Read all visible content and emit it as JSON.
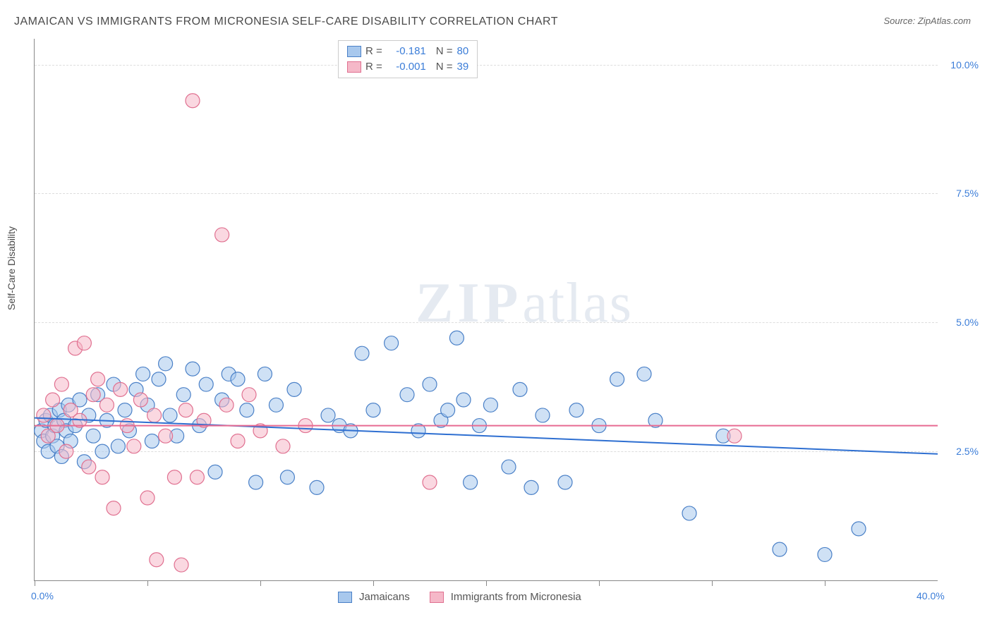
{
  "title": "JAMAICAN VS IMMIGRANTS FROM MICRONESIA SELF-CARE DISABILITY CORRELATION CHART",
  "source_label": "Source: ",
  "source_value": "ZipAtlas.com",
  "y_axis_label": "Self-Care Disability",
  "watermark_bold": "ZIP",
  "watermark_light": "atlas",
  "chart": {
    "type": "scatter",
    "xlim": [
      0,
      40
    ],
    "ylim": [
      0,
      10.5
    ],
    "x_tick_positions": [
      0,
      5,
      10,
      15,
      20,
      25,
      30,
      35
    ],
    "x_tick_labels": {
      "0": "0.0%",
      "40": "40.0%"
    },
    "y_tick_positions": [
      2.5,
      5.0,
      7.5,
      10.0
    ],
    "y_tick_labels": [
      "2.5%",
      "5.0%",
      "7.5%",
      "10.0%"
    ],
    "grid_color": "#dddddd",
    "background_color": "#ffffff",
    "marker_radius": 10,
    "marker_stroke_width": 1.2,
    "series": [
      {
        "name": "Jamaicans",
        "fill": "#a8c8ed",
        "stroke": "#4a80c7",
        "fill_opacity": 0.55,
        "legend_swatch_fill": "#a8c8ed",
        "legend_swatch_stroke": "#4a80c7",
        "r_value": "-0.181",
        "n_value": "80",
        "regression": {
          "x1": 0,
          "y1": 3.15,
          "x2": 40,
          "y2": 2.45,
          "color": "#2e6fd1",
          "width": 2
        },
        "points": [
          [
            0.3,
            2.9
          ],
          [
            0.4,
            2.7
          ],
          [
            0.5,
            3.1
          ],
          [
            0.6,
            2.5
          ],
          [
            0.7,
            3.2
          ],
          [
            0.8,
            2.8
          ],
          [
            0.9,
            3.0
          ],
          [
            1.0,
            2.6
          ],
          [
            1.1,
            3.3
          ],
          [
            1.2,
            2.4
          ],
          [
            1.3,
            3.1
          ],
          [
            1.4,
            2.9
          ],
          [
            1.5,
            3.4
          ],
          [
            1.6,
            2.7
          ],
          [
            1.8,
            3.0
          ],
          [
            2.0,
            3.5
          ],
          [
            2.2,
            2.3
          ],
          [
            2.4,
            3.2
          ],
          [
            2.6,
            2.8
          ],
          [
            2.8,
            3.6
          ],
          [
            3.0,
            2.5
          ],
          [
            3.2,
            3.1
          ],
          [
            3.5,
            3.8
          ],
          [
            3.7,
            2.6
          ],
          [
            4.0,
            3.3
          ],
          [
            4.2,
            2.9
          ],
          [
            4.5,
            3.7
          ],
          [
            4.8,
            4.0
          ],
          [
            5.0,
            3.4
          ],
          [
            5.2,
            2.7
          ],
          [
            5.5,
            3.9
          ],
          [
            5.8,
            4.2
          ],
          [
            6.0,
            3.2
          ],
          [
            6.3,
            2.8
          ],
          [
            6.6,
            3.6
          ],
          [
            7.0,
            4.1
          ],
          [
            7.3,
            3.0
          ],
          [
            7.6,
            3.8
          ],
          [
            8.0,
            2.1
          ],
          [
            8.3,
            3.5
          ],
          [
            8.6,
            4.0
          ],
          [
            9.0,
            3.9
          ],
          [
            9.4,
            3.3
          ],
          [
            9.8,
            1.9
          ],
          [
            10.2,
            4.0
          ],
          [
            10.7,
            3.4
          ],
          [
            11.2,
            2.0
          ],
          [
            11.5,
            3.7
          ],
          [
            12.5,
            1.8
          ],
          [
            13.0,
            3.2
          ],
          [
            13.5,
            3.0
          ],
          [
            14.0,
            2.9
          ],
          [
            14.5,
            4.4
          ],
          [
            15.0,
            3.3
          ],
          [
            15.8,
            4.6
          ],
          [
            16.5,
            3.6
          ],
          [
            17.0,
            2.9
          ],
          [
            17.5,
            3.8
          ],
          [
            18.0,
            3.1
          ],
          [
            18.3,
            3.3
          ],
          [
            18.7,
            4.7
          ],
          [
            19.0,
            3.5
          ],
          [
            19.3,
            1.9
          ],
          [
            19.7,
            3.0
          ],
          [
            20.2,
            3.4
          ],
          [
            21.0,
            2.2
          ],
          [
            21.5,
            3.7
          ],
          [
            22.0,
            1.8
          ],
          [
            22.5,
            3.2
          ],
          [
            23.5,
            1.9
          ],
          [
            24.0,
            3.3
          ],
          [
            25.0,
            3.0
          ],
          [
            25.8,
            3.9
          ],
          [
            27.0,
            4.0
          ],
          [
            27.5,
            3.1
          ],
          [
            29.0,
            1.3
          ],
          [
            30.5,
            2.8
          ],
          [
            33.0,
            0.6
          ],
          [
            35.0,
            0.5
          ],
          [
            36.5,
            1.0
          ]
        ]
      },
      {
        "name": "Immigrants from Micronesia",
        "fill": "#f5b8c8",
        "stroke": "#e07090",
        "fill_opacity": 0.55,
        "legend_swatch_fill": "#f5b8c8",
        "legend_swatch_stroke": "#e07090",
        "r_value": "-0.001",
        "n_value": "39",
        "regression": {
          "x1": 0,
          "y1": 3.0,
          "x2": 40,
          "y2": 3.0,
          "color": "#e86b92",
          "width": 2
        },
        "points": [
          [
            0.4,
            3.2
          ],
          [
            0.6,
            2.8
          ],
          [
            0.8,
            3.5
          ],
          [
            1.0,
            3.0
          ],
          [
            1.2,
            3.8
          ],
          [
            1.4,
            2.5
          ],
          [
            1.6,
            3.3
          ],
          [
            1.8,
            4.5
          ],
          [
            2.0,
            3.1
          ],
          [
            2.2,
            4.6
          ],
          [
            2.4,
            2.2
          ],
          [
            2.6,
            3.6
          ],
          [
            2.8,
            3.9
          ],
          [
            3.0,
            2.0
          ],
          [
            3.2,
            3.4
          ],
          [
            3.5,
            1.4
          ],
          [
            3.8,
            3.7
          ],
          [
            4.1,
            3.0
          ],
          [
            4.4,
            2.6
          ],
          [
            4.7,
            3.5
          ],
          [
            5.0,
            1.6
          ],
          [
            5.3,
            3.2
          ],
          [
            5.4,
            0.4
          ],
          [
            5.8,
            2.8
          ],
          [
            6.2,
            2.0
          ],
          [
            6.5,
            0.3
          ],
          [
            6.7,
            3.3
          ],
          [
            7.0,
            9.3
          ],
          [
            7.2,
            2.0
          ],
          [
            7.5,
            3.1
          ],
          [
            8.3,
            6.7
          ],
          [
            8.5,
            3.4
          ],
          [
            9.0,
            2.7
          ],
          [
            9.5,
            3.6
          ],
          [
            10.0,
            2.9
          ],
          [
            11.0,
            2.6
          ],
          [
            12.0,
            3.0
          ],
          [
            17.5,
            1.9
          ],
          [
            31.0,
            2.8
          ]
        ]
      }
    ],
    "legend_top": {
      "r_label": "R =",
      "n_label": "N ="
    },
    "legend_bottom_labels": [
      "Jamaicans",
      "Immigrants from Micronesia"
    ]
  }
}
